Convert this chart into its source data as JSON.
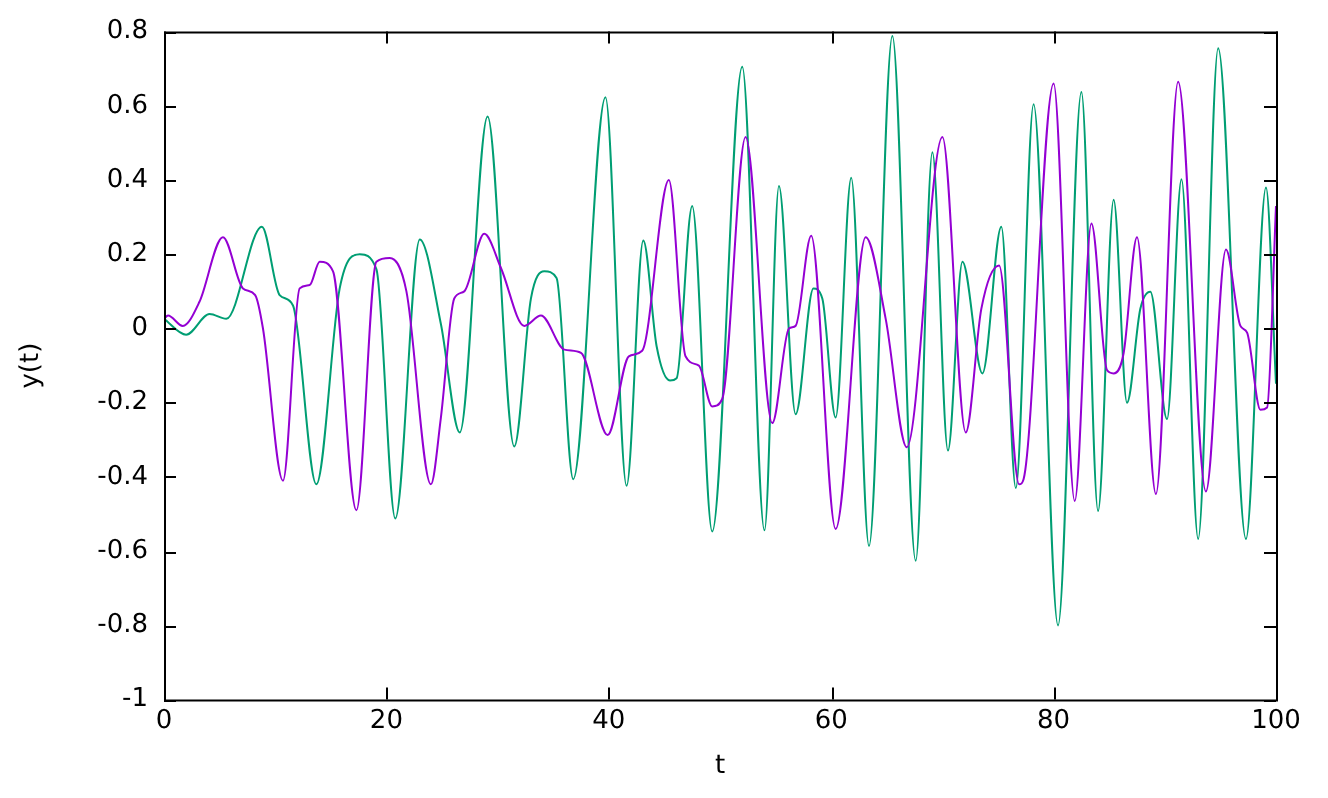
{
  "chart_data": {
    "type": "line",
    "xlabel": "t",
    "ylabel": "y(t)",
    "xlim": [
      0,
      100
    ],
    "ylim": [
      -1,
      0.8
    ],
    "xticks": [
      0,
      20,
      40,
      60,
      80,
      100
    ],
    "yticks": [
      -1,
      -0.8,
      -0.6,
      -0.4,
      -0.2,
      0,
      0.2,
      0.4,
      0.6,
      0.8
    ],
    "grid": false,
    "legend": false,
    "marker": "none",
    "line_style": "solid",
    "series": [
      {
        "color": "#9400d3",
        "x": [
          0,
          0.36,
          1.69,
          3.19,
          5.3,
          7.1,
          8.2,
          8.9,
          10.7,
          12.2,
          13.1,
          14.0,
          15.2,
          17.3,
          19.1,
          20.3,
          21.8,
          24.0,
          24.9,
          26.1,
          27.0,
          28.8,
          30.3,
          32.4,
          33.9,
          36.0,
          37.5,
          39.9,
          41.8,
          43.0,
          45.4,
          46.9,
          48.1,
          49.3,
          50.2,
          52.3,
          54.7,
          56.2,
          56.8,
          58.2,
          60.4,
          63.1,
          64.9,
          66.8,
          70.0,
          72.1,
          73.5,
          75.1,
          76.9,
          77.3,
          80.0,
          81.9,
          83.4,
          84.8,
          85.4,
          86.3,
          87.5,
          89.2,
          91.2,
          93.7,
          95.5,
          96.8,
          97.4,
          98.6,
          99.2,
          100
        ],
        "values": [
          0.026,
          0.035,
          0.007,
          0.072,
          0.246,
          0.108,
          0.09,
          0,
          -0.41,
          0.108,
          0.117,
          0.18,
          0.154,
          -0.49,
          0.18,
          0.19,
          0.1,
          -0.42,
          -0.24,
          0.081,
          0.1,
          0.255,
          0.163,
          0.007,
          0.035,
          -0.057,
          -0.066,
          -0.287,
          -0.075,
          -0.06,
          0.4,
          -0.075,
          -0.1,
          -0.21,
          -0.19,
          0.516,
          -0.255,
          0,
          0.007,
          0.25,
          -0.54,
          0.246,
          0.026,
          -0.32,
          0.516,
          -0.28,
          0.053,
          0.17,
          -0.42,
          -0.406,
          0.66,
          -0.465,
          0.283,
          -0.112,
          -0.121,
          -0.066,
          0.246,
          -0.446,
          0.665,
          -0.439,
          0.213,
          0.007,
          -0.011,
          -0.219,
          -0.213,
          0.33
        ]
      },
      {
        "color": "#009e73",
        "x": [
          0,
          1.99,
          4.1,
          5.6,
          8.8,
          10.4,
          11.6,
          13.7,
          15.8,
          17.6,
          19.1,
          20.8,
          23.0,
          24.9,
          26.6,
          29.1,
          31.5,
          33.0,
          34.2,
          35.3,
          36.8,
          39.7,
          41.6,
          43.1,
          44.3,
          45.5,
          46.1,
          47.5,
          49.3,
          52.0,
          54.0,
          55.3,
          56.8,
          58.4,
          59.2,
          60.4,
          61.8,
          63.4,
          65.5,
          67.6,
          69.1,
          70.5,
          71.8,
          73.6,
          75.3,
          76.6,
          78.2,
          80.4,
          82.5,
          84.0,
          85.4,
          86.6,
          87.8,
          88.7,
          90.2,
          91.5,
          93.0,
          94.8,
          97.3,
          99.1,
          100
        ],
        "values": [
          0.026,
          -0.017,
          0.039,
          0.026,
          0.274,
          0.09,
          0.062,
          -0.42,
          0.108,
          0.2,
          0.16,
          -0.512,
          0.24,
          0.012,
          -0.28,
          0.571,
          -0.318,
          0.081,
          0.154,
          0.136,
          -0.406,
          0.623,
          -0.424,
          0.237,
          -0.048,
          -0.14,
          -0.134,
          0.33,
          -0.547,
          0.705,
          -0.544,
          0.384,
          -0.231,
          0.108,
          0.081,
          -0.24,
          0.406,
          -0.586,
          0.788,
          -0.626,
          0.475,
          -0.329,
          0.18,
          -0.121,
          0.274,
          -0.43,
          0.604,
          -0.8,
          0.637,
          -0.492,
          0.347,
          -0.2,
          0.053,
          0.099,
          -0.244,
          0.402,
          -0.567,
          0.755,
          -0.567,
          0.38,
          -0.149
        ]
      }
    ]
  }
}
